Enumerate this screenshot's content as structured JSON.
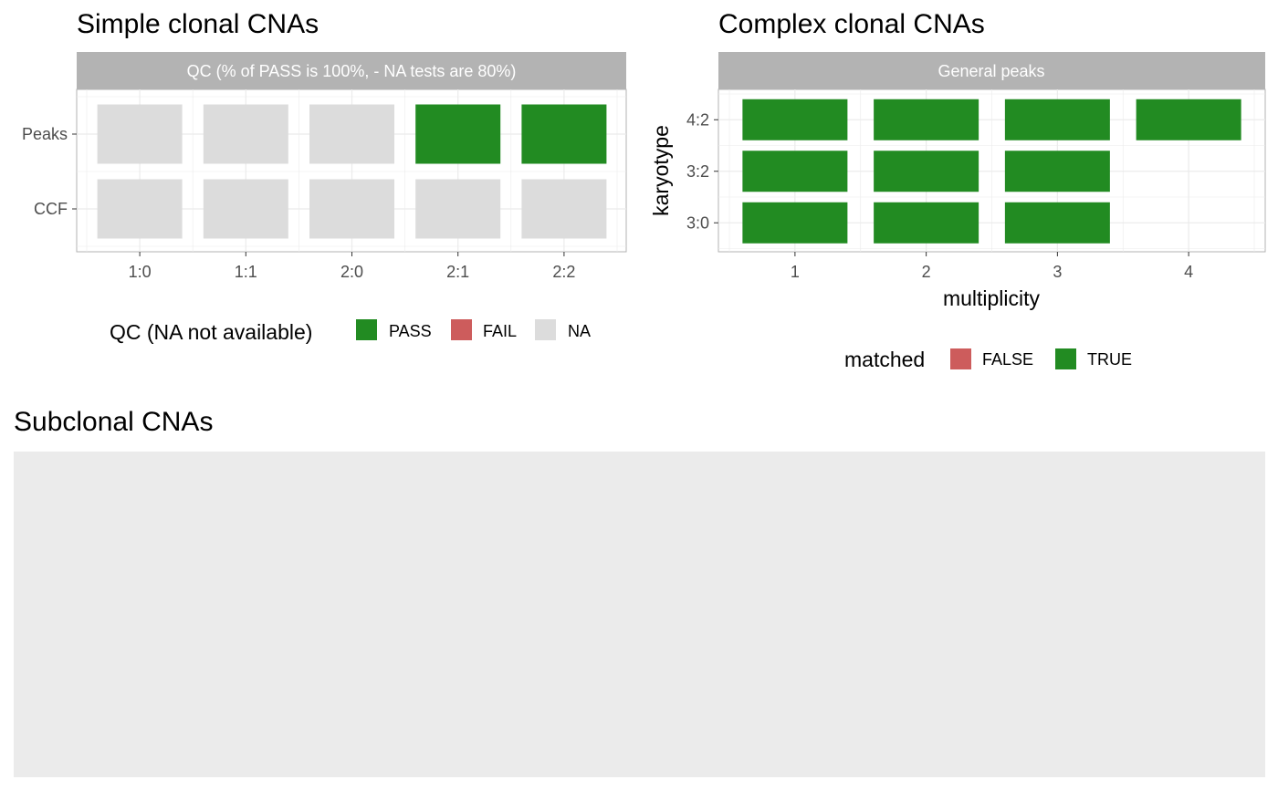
{
  "chart_data": [
    {
      "type": "heatmap",
      "title": "Simple clonal CNAs",
      "strip": "QC (% of PASS is 100%, - NA tests are 80%)",
      "x_categories": [
        "1:0",
        "1:1",
        "2:0",
        "2:1",
        "2:2"
      ],
      "y_categories": [
        "Peaks",
        "CCF"
      ],
      "cells": [
        {
          "x": "1:0",
          "y": "Peaks",
          "value": "NA"
        },
        {
          "x": "1:1",
          "y": "Peaks",
          "value": "NA"
        },
        {
          "x": "2:0",
          "y": "Peaks",
          "value": "NA"
        },
        {
          "x": "2:1",
          "y": "Peaks",
          "value": "PASS"
        },
        {
          "x": "2:2",
          "y": "Peaks",
          "value": "PASS"
        },
        {
          "x": "1:0",
          "y": "CCF",
          "value": "NA"
        },
        {
          "x": "1:1",
          "y": "CCF",
          "value": "NA"
        },
        {
          "x": "2:0",
          "y": "CCF",
          "value": "NA"
        },
        {
          "x": "2:1",
          "y": "CCF",
          "value": "NA"
        },
        {
          "x": "2:2",
          "y": "CCF",
          "value": "NA"
        }
      ],
      "legend": {
        "title": "QC (NA not available)",
        "items": [
          {
            "label": "PASS",
            "color": "#228b22"
          },
          {
            "label": "FAIL",
            "color": "#cd5c5c"
          },
          {
            "label": "NA",
            "color": "#dcdcdc"
          }
        ]
      }
    },
    {
      "type": "heatmap",
      "title": "Complex clonal CNAs",
      "strip": "General peaks",
      "xlabel": "multiplicity",
      "ylabel": "karyotype",
      "x_categories": [
        "1",
        "2",
        "3",
        "4"
      ],
      "y_categories": [
        "4:2",
        "3:2",
        "3:0"
      ],
      "cells": [
        {
          "x": "1",
          "y": "4:2",
          "value": "TRUE"
        },
        {
          "x": "2",
          "y": "4:2",
          "value": "TRUE"
        },
        {
          "x": "3",
          "y": "4:2",
          "value": "TRUE"
        },
        {
          "x": "4",
          "y": "4:2",
          "value": "TRUE"
        },
        {
          "x": "1",
          "y": "3:2",
          "value": "TRUE"
        },
        {
          "x": "2",
          "y": "3:2",
          "value": "TRUE"
        },
        {
          "x": "3",
          "y": "3:2",
          "value": "TRUE"
        },
        {
          "x": "1",
          "y": "3:0",
          "value": "TRUE"
        },
        {
          "x": "2",
          "y": "3:0",
          "value": "TRUE"
        },
        {
          "x": "3",
          "y": "3:0",
          "value": "TRUE"
        }
      ],
      "legend": {
        "title": "matched",
        "items": [
          {
            "label": "FALSE",
            "color": "#cd5c5c"
          },
          {
            "label": "TRUE",
            "color": "#228b22"
          }
        ]
      }
    },
    {
      "type": "heatmap",
      "title": "Subclonal CNAs",
      "cells": []
    }
  ],
  "colors": {
    "pass": "#228b22",
    "fail": "#cd5c5c",
    "na": "#dcdcdc",
    "strip_bg": "#b3b3b3",
    "grid": "#ebebeb",
    "panel_border": "#b3b3b3",
    "empty_panel": "#ebebeb"
  }
}
